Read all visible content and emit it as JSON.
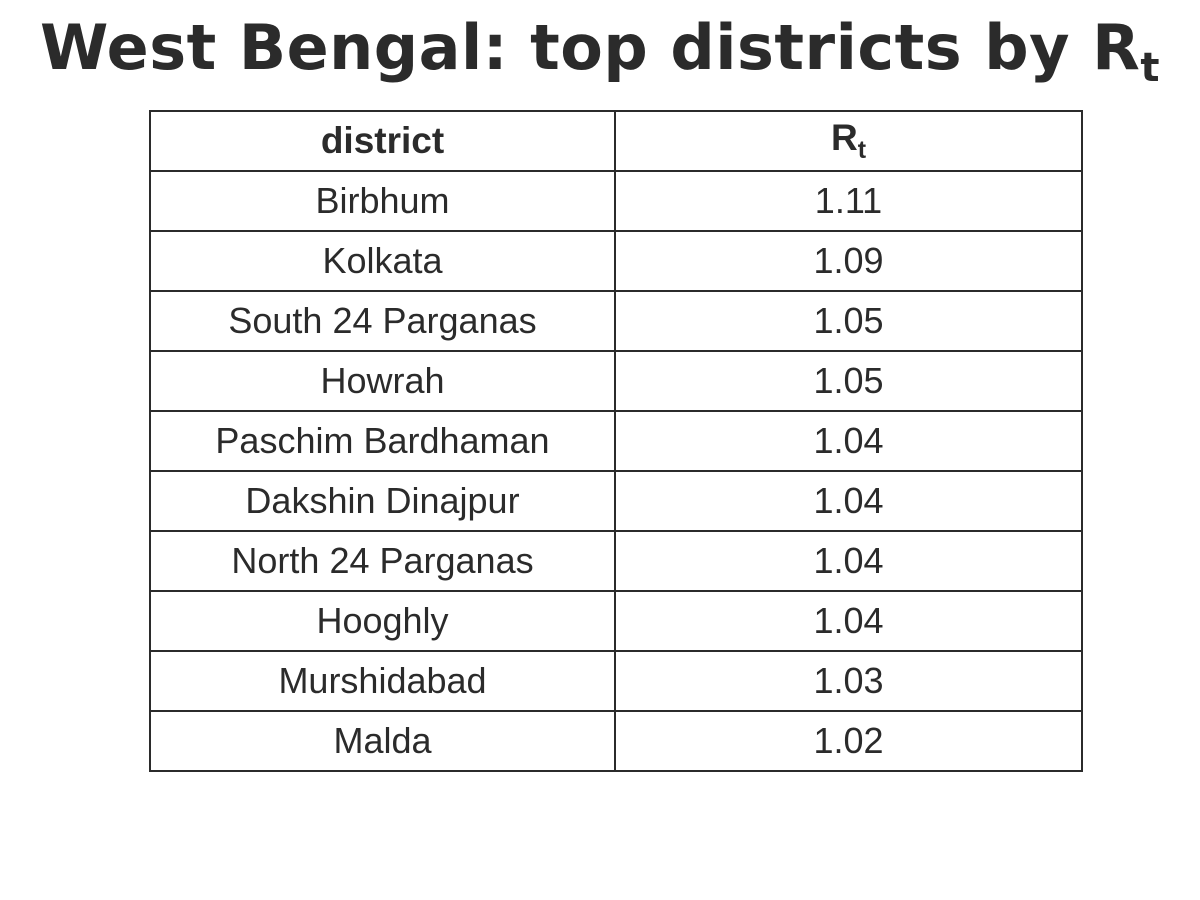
{
  "chart_data": {
    "type": "table",
    "title": "West Bengal: top districts by R",
    "title_subscript": "t",
    "columns": [
      {
        "label": "district",
        "subscript": ""
      },
      {
        "label": "R",
        "subscript": "t"
      }
    ],
    "rows": [
      {
        "district": "Birbhum",
        "rt": "1.11"
      },
      {
        "district": "Kolkata",
        "rt": "1.09"
      },
      {
        "district": "South 24 Parganas",
        "rt": "1.05"
      },
      {
        "district": "Howrah",
        "rt": "1.05"
      },
      {
        "district": "Paschim Bardhaman",
        "rt": "1.04"
      },
      {
        "district": "Dakshin Dinajpur",
        "rt": "1.04"
      },
      {
        "district": "North 24 Parganas",
        "rt": "1.04"
      },
      {
        "district": "Hooghly",
        "rt": "1.04"
      },
      {
        "district": "Murshidabad",
        "rt": "1.03"
      },
      {
        "district": "Malda",
        "rt": "1.02"
      }
    ]
  }
}
